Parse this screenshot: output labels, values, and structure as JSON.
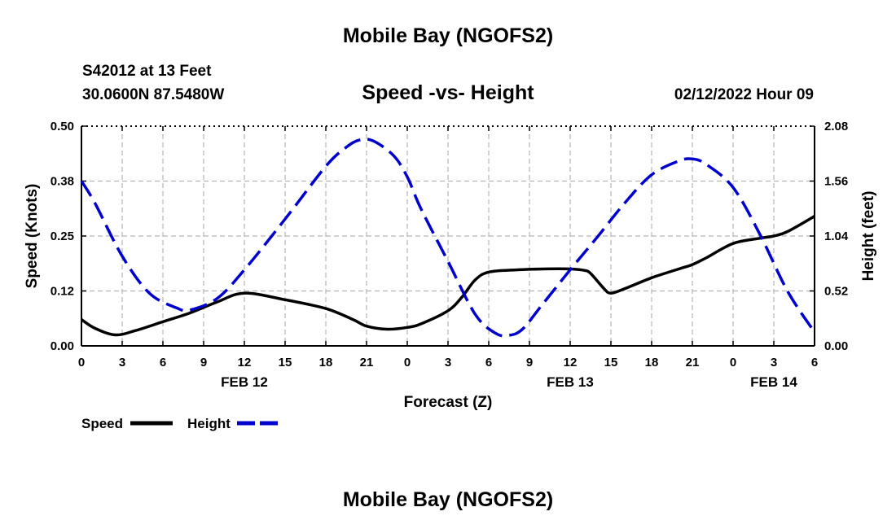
{
  "header": {
    "title": "Mobile Bay (NGOFS2)",
    "station": "S42012 at 13 Feet",
    "coords": "30.0600N  87.5480W",
    "plot_title": "Speed -vs- Height",
    "datetime": "02/12/2022 Hour 09",
    "bottom_title": "Mobile Bay (NGOFS2)"
  },
  "colors": {
    "speed": "#000000",
    "height": "#0000cc",
    "grid": "#b4b4b4"
  },
  "chart_data": {
    "type": "line",
    "title": "Speed -vs- Height",
    "xlabel": "Forecast (Z)",
    "ylabel": "Speed (Knots)",
    "y2label": "Height (feet)",
    "x_range": [
      0,
      54
    ],
    "x_ticks": [
      0,
      3,
      6,
      9,
      12,
      15,
      18,
      21,
      24,
      27,
      30,
      33,
      36,
      39,
      42,
      45,
      48,
      51,
      54
    ],
    "x_tick_labels": [
      "0",
      "3",
      "6",
      "9",
      "12",
      "15",
      "18",
      "21",
      "0",
      "3",
      "6",
      "9",
      "12",
      "15",
      "18",
      "21",
      "0",
      "3",
      "6"
    ],
    "date_labels": [
      {
        "x": 12,
        "label": "FEB 12"
      },
      {
        "x": 36,
        "label": "FEB 13"
      },
      {
        "x": 51,
        "label": "FEB 14"
      }
    ],
    "ylim": [
      0,
      0.5
    ],
    "y_ticks": [
      0,
      0.125,
      0.25,
      0.375,
      0.5
    ],
    "y_tick_labels": [
      "0.00",
      "0.12",
      "0.25",
      "0.38",
      "0.50"
    ],
    "y2lim": [
      0,
      2.08
    ],
    "y2_ticks": [
      0,
      0.52,
      1.04,
      1.56,
      2.08
    ],
    "y2_tick_labels": [
      "0.00",
      "0.52",
      "1.04",
      "1.56",
      "2.08"
    ],
    "grid": true,
    "legend_position": "bottom-left",
    "series": [
      {
        "name": "Speed",
        "axis": "left",
        "style": "solid",
        "x": [
          0,
          1,
          2.5,
          4,
          6,
          8,
          10,
          12,
          15,
          18,
          20,
          21,
          22.5,
          24,
          25,
          27,
          28,
          29,
          30,
          32,
          34,
          36,
          37,
          37.5,
          38.5,
          39,
          40,
          42,
          44,
          45,
          46,
          48,
          50,
          51,
          52,
          54
        ],
        "y": [
          0.06,
          0.04,
          0.025,
          0.035,
          0.055,
          0.075,
          0.1,
          0.12,
          0.105,
          0.085,
          0.06,
          0.045,
          0.038,
          0.042,
          0.05,
          0.08,
          0.11,
          0.15,
          0.168,
          0.173,
          0.175,
          0.175,
          0.172,
          0.165,
          0.13,
          0.12,
          0.13,
          0.155,
          0.175,
          0.185,
          0.2,
          0.233,
          0.245,
          0.25,
          0.26,
          0.295
        ]
      },
      {
        "name": "Height",
        "axis": "right",
        "style": "dashed",
        "x": [
          0,
          1,
          3,
          5,
          7,
          8,
          10,
          12,
          15,
          18,
          19.5,
          20.5,
          21.5,
          23,
          24,
          25,
          27,
          29,
          30.5,
          31.5,
          32.5,
          34,
          36,
          38,
          40,
          42,
          44,
          45,
          46,
          48,
          50,
          52,
          54
        ],
        "y": [
          1.56,
          1.35,
          0.85,
          0.5,
          0.36,
          0.34,
          0.45,
          0.72,
          1.2,
          1.7,
          1.88,
          1.95,
          1.94,
          1.8,
          1.6,
          1.3,
          0.8,
          0.3,
          0.12,
          0.1,
          0.16,
          0.4,
          0.72,
          1.03,
          1.35,
          1.62,
          1.75,
          1.77,
          1.72,
          1.5,
          1.05,
          0.52,
          0.13
        ]
      }
    ]
  }
}
